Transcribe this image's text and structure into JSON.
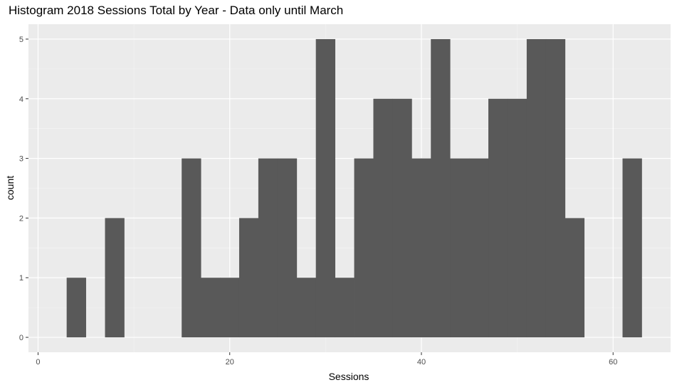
{
  "chart_data": {
    "type": "bar",
    "subtype": "histogram",
    "title": "Histogram 2018 Sessions Total by Year - Data only until March",
    "xlabel": "Sessions",
    "ylabel": "count",
    "xlim": [
      -1,
      66
    ],
    "ylim": [
      -0.25,
      5.25
    ],
    "x_ticks": [
      0,
      20,
      40,
      60
    ],
    "y_ticks": [
      0,
      1,
      2,
      3,
      4,
      5
    ],
    "bin_width": 2.03,
    "bar_color": "#595959",
    "panel_color": "#ebebeb",
    "grid": true,
    "bins": [
      {
        "x": 4.0,
        "count": 1
      },
      {
        "x": 8.0,
        "count": 2
      },
      {
        "x": 16.0,
        "count": 3
      },
      {
        "x": 18.0,
        "count": 1
      },
      {
        "x": 20.0,
        "count": 1
      },
      {
        "x": 22.0,
        "count": 2
      },
      {
        "x": 24.0,
        "count": 3
      },
      {
        "x": 26.0,
        "count": 3
      },
      {
        "x": 28.0,
        "count": 1
      },
      {
        "x": 30.0,
        "count": 5
      },
      {
        "x": 32.0,
        "count": 1
      },
      {
        "x": 34.0,
        "count": 3
      },
      {
        "x": 36.0,
        "count": 4
      },
      {
        "x": 38.0,
        "count": 4
      },
      {
        "x": 40.0,
        "count": 3
      },
      {
        "x": 42.0,
        "count": 5
      },
      {
        "x": 44.0,
        "count": 3
      },
      {
        "x": 46.0,
        "count": 3
      },
      {
        "x": 48.0,
        "count": 4
      },
      {
        "x": 50.0,
        "count": 4
      },
      {
        "x": 52.0,
        "count": 5
      },
      {
        "x": 54.0,
        "count": 5
      },
      {
        "x": 56.0,
        "count": 2
      },
      {
        "x": 62.0,
        "count": 3
      }
    ]
  }
}
